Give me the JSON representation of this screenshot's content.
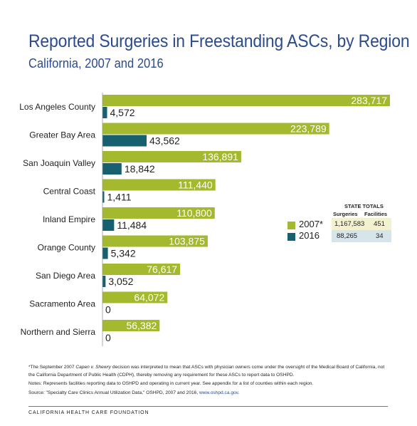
{
  "title": "Reported Surgeries in Freestanding ASCs, by Region",
  "subtitle": "California, 2007 and 2016",
  "colors": {
    "series_2007": "#a4b92d",
    "series_2016": "#17606f",
    "title": "#2b4b8e",
    "totals_2007_bg": "#f3f1cf",
    "totals_2016_bg": "#d5e5ea"
  },
  "chart_data": {
    "type": "bar",
    "orientation": "horizontal",
    "categories": [
      "Los Angeles County",
      "Greater Bay Area",
      "San Joaquin Valley",
      "Central Coast",
      "Inland Empire",
      "Orange County",
      "San Diego Area",
      "Sacramento Area",
      "Northern and Sierra"
    ],
    "series": [
      {
        "name": "2007*",
        "values": [
          283717,
          223789,
          136891,
          111440,
          110800,
          103875,
          76617,
          64072,
          56382
        ],
        "labels": [
          "283,717",
          "223,789",
          "136,891",
          "111,440",
          "110,800",
          "103,875",
          "76,617",
          "64,072",
          "56,382"
        ]
      },
      {
        "name": "2016",
        "values": [
          4572,
          43562,
          18842,
          1411,
          11484,
          5342,
          3052,
          0,
          0
        ],
        "labels": [
          "4,572",
          "43,562",
          "18,842",
          "1,411",
          "11,484",
          "5,342",
          "3,052",
          "0",
          "0"
        ]
      }
    ],
    "xlim": [
      0,
      283717
    ],
    "legend": "right"
  },
  "state_totals": {
    "heading": "STATE TOTALS",
    "col_surgeries": "Surgeries",
    "col_facilities": "Facilities",
    "rows": [
      {
        "surgeries": "1,167,583",
        "facilities": "451"
      },
      {
        "surgeries": "88,265",
        "facilities": "34"
      }
    ]
  },
  "notes": {
    "n1_pre": "*The September 2007 ",
    "n1_case": "Capen v. Shewry",
    "n1_post": " decision was interpreted to mean that ASCs with physician owners come under the oversight of the Medical Board of California, not the California Department of Public Health (CDPH), thereby removing any requirement for these ASCs to report data to OSHPD.",
    "n2": "Notes: Represents facilities reporting data to OSHPD and operating in current year. See appendix for a list of counties within each region.",
    "n3_pre": "Source: \"Specialty Care Clinics Annual Utilization Data,\" OSHPD, 2007 and 2016, ",
    "n3_link": "www.oshpd.ca.gov",
    "n3_post": "."
  },
  "footer": "CALIFORNIA HEALTH CARE FOUNDATION"
}
